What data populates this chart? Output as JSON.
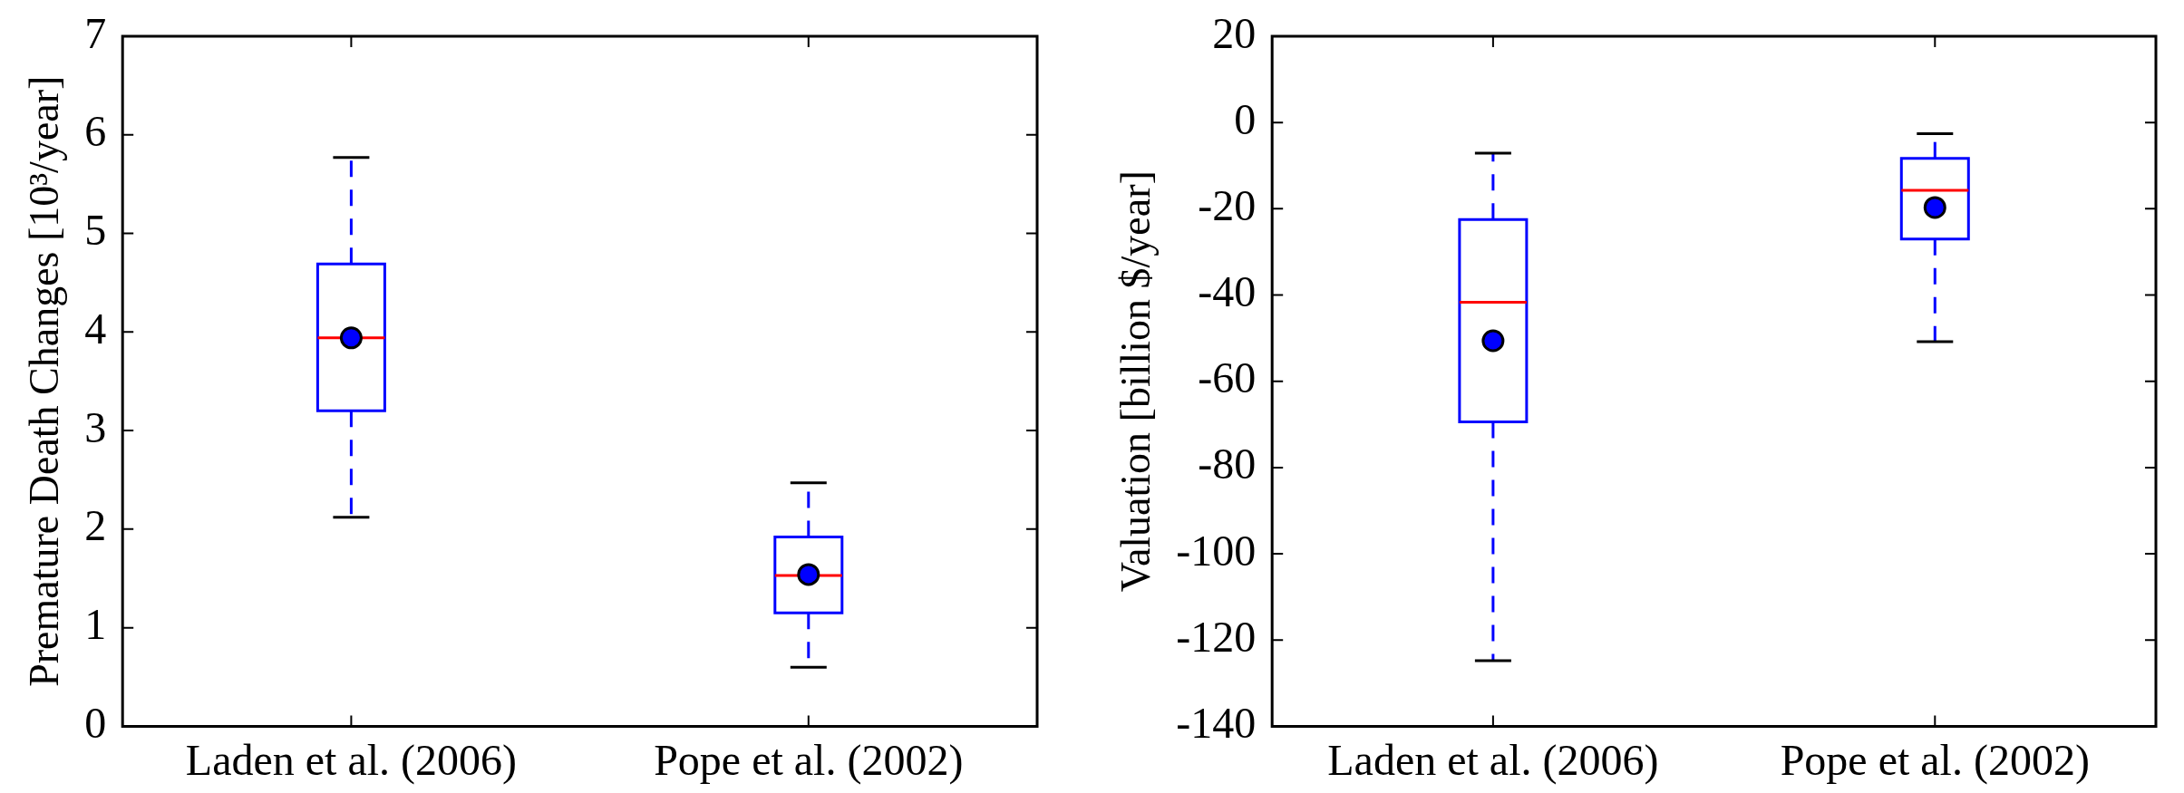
{
  "chart_data": [
    {
      "type": "box",
      "categories": [
        "Laden et al. (2006)",
        "Pope et al. (2002)"
      ],
      "ylabel": "Premature Death Changes [10³/year]",
      "ylim": [
        0,
        7
      ],
      "yticks": [
        0,
        1,
        2,
        3,
        4,
        5,
        6,
        7
      ],
      "marker": "circle",
      "boxes": [
        {
          "low": 2.12,
          "q1": 3.2,
          "median": 3.94,
          "q3": 4.69,
          "high": 5.77,
          "mean": 3.94
        },
        {
          "low": 0.6,
          "q1": 1.15,
          "median": 1.53,
          "q3": 1.92,
          "high": 2.47,
          "mean": 1.54
        }
      ]
    },
    {
      "type": "box",
      "categories": [
        "Laden et al. (2006)",
        "Pope et al. (2002)"
      ],
      "ylabel": "Valuation [billion $/year]",
      "ylim": [
        -140,
        20
      ],
      "yticks": [
        -140,
        -120,
        -100,
        -80,
        -60,
        -40,
        -20,
        0,
        20
      ],
      "marker": "circle",
      "boxes": [
        {
          "low": -124.8,
          "q1": -69.4,
          "median": -41.7,
          "q3": -22.5,
          "high": -7.1,
          "mean": -50.6
        },
        {
          "low": -50.8,
          "q1": -27,
          "median": -15.7,
          "q3": -8.3,
          "high": -2.6,
          "mean": -19.7
        }
      ]
    }
  ]
}
